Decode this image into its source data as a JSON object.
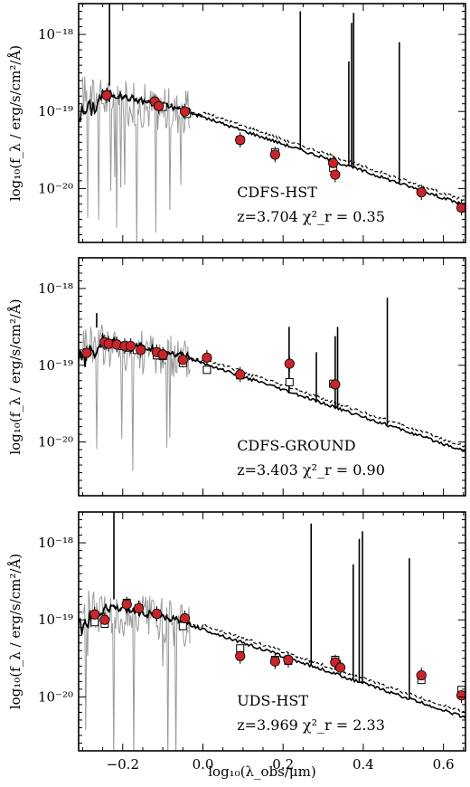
{
  "chart_data": [
    {
      "type": "line",
      "id": "top",
      "field_label": "CDFS-HST",
      "fit_label": "z=3.704 χ²_r = 0.35",
      "ylabel": "log₁₀(f_λ / erg/s/cm²/Å)",
      "xlim": [
        -0.31,
        0.655
      ],
      "ylim": [
        -20.7,
        -17.6
      ],
      "yticks": [
        {
          "v": -18,
          "label": "10⁻¹⁸"
        },
        {
          "v": -19,
          "label": "10⁻¹⁹"
        },
        {
          "v": -20,
          "label": "10⁻²⁰"
        }
      ],
      "photometry": [
        {
          "x": -0.24,
          "y": -18.79
        },
        {
          "x": -0.12,
          "y": -18.87
        },
        {
          "x": -0.11,
          "y": -18.93
        },
        {
          "x": -0.045,
          "y": -19.0
        },
        {
          "x": 0.093,
          "y": -19.37
        },
        {
          "x": 0.18,
          "y": -19.56
        },
        {
          "x": 0.325,
          "y": -19.67
        },
        {
          "x": 0.33,
          "y": -19.82
        },
        {
          "x": 0.545,
          "y": -20.05
        },
        {
          "x": 0.645,
          "y": -20.25
        }
      ],
      "model_photometry": [
        {
          "x": -0.24,
          "y": -18.78
        },
        {
          "x": -0.12,
          "y": -18.88
        },
        {
          "x": -0.1,
          "y": -18.94
        },
        {
          "x": -0.04,
          "y": -19.03
        },
        {
          "x": 0.093,
          "y": -19.37
        },
        {
          "x": 0.18,
          "y": -19.53
        },
        {
          "x": 0.325,
          "y": -19.73
        },
        {
          "x": 0.645,
          "y": -20.24
        }
      ],
      "emission_lines": [
        {
          "x": -0.233,
          "y": -17.55
        },
        {
          "x": 0.243,
          "y": -17.7
        },
        {
          "x": 0.364,
          "y": -18.35
        },
        {
          "x": 0.371,
          "y": -17.85
        },
        {
          "x": 0.376,
          "y": -17.72
        },
        {
          "x": 0.49,
          "y": -18.1
        }
      ]
    },
    {
      "type": "line",
      "id": "middle",
      "field_label": "CDFS-GROUND",
      "fit_label": "z=3.403 χ²_r = 0.90",
      "ylabel": "log₁₀(f_λ / erg/s/cm²/Å)",
      "xlim": [
        -0.31,
        0.655
      ],
      "ylim": [
        -20.7,
        -17.6
      ],
      "yticks": [
        {
          "v": -18,
          "label": "10⁻¹⁸"
        },
        {
          "v": -19,
          "label": "10⁻¹⁹"
        },
        {
          "v": -20,
          "label": "10⁻²⁰"
        }
      ],
      "photometry": [
        {
          "x": -0.29,
          "y": -18.84
        },
        {
          "x": -0.245,
          "y": -18.7
        },
        {
          "x": -0.235,
          "y": -18.72
        },
        {
          "x": -0.215,
          "y": -18.73
        },
        {
          "x": -0.195,
          "y": -18.75
        },
        {
          "x": -0.18,
          "y": -18.75
        },
        {
          "x": -0.155,
          "y": -18.8
        },
        {
          "x": -0.115,
          "y": -18.83
        },
        {
          "x": -0.1,
          "y": -18.86
        },
        {
          "x": -0.05,
          "y": -18.93
        },
        {
          "x": 0.01,
          "y": -18.9
        },
        {
          "x": 0.093,
          "y": -19.12
        },
        {
          "x": 0.216,
          "y": -18.98
        },
        {
          "x": 0.33,
          "y": -19.25
        }
      ],
      "model_photometry": [
        {
          "x": -0.24,
          "y": -18.73
        },
        {
          "x": -0.2,
          "y": -18.75
        },
        {
          "x": -0.185,
          "y": -18.77
        },
        {
          "x": -0.165,
          "y": -18.8
        },
        {
          "x": -0.115,
          "y": -18.87
        },
        {
          "x": -0.1,
          "y": -18.88
        },
        {
          "x": -0.05,
          "y": -18.97
        },
        {
          "x": 0.01,
          "y": -19.06
        },
        {
          "x": 0.093,
          "y": -19.13
        },
        {
          "x": 0.216,
          "y": -19.22
        },
        {
          "x": 0.325,
          "y": -19.24
        }
      ],
      "emission_lines": [
        {
          "x": -0.265,
          "y": -18.32
        },
        {
          "x": 0.215,
          "y": -18.5
        },
        {
          "x": 0.283,
          "y": -18.83
        },
        {
          "x": 0.33,
          "y": -18.62
        },
        {
          "x": 0.336,
          "y": -18.5
        },
        {
          "x": 0.46,
          "y": -18.12
        }
      ]
    },
    {
      "type": "line",
      "id": "bottom",
      "field_label": "UDS-HST",
      "fit_label": "z=3.969 χ²_r = 2.33",
      "ylabel": "log₁₀(f_λ / erg/s/cm²/Å)",
      "xlabel": "log₁₀(λ_obs/μm)",
      "xlim": [
        -0.31,
        0.655
      ],
      "ylim": [
        -20.7,
        -17.6
      ],
      "xticks": [
        {
          "v": -0.2,
          "label": "−0.2"
        },
        {
          "v": 0.0,
          "label": "0.0"
        },
        {
          "v": 0.2,
          "label": "0.2"
        },
        {
          "v": 0.4,
          "label": "0.4"
        },
        {
          "v": 0.6,
          "label": "0.6"
        }
      ],
      "yticks": [
        {
          "v": -18,
          "label": "10⁻¹⁸"
        },
        {
          "v": -19,
          "label": "10⁻¹⁹"
        },
        {
          "v": -20,
          "label": "10⁻²⁰"
        }
      ],
      "photometry": [
        {
          "x": -0.27,
          "y": -18.93
        },
        {
          "x": -0.245,
          "y": -19.0
        },
        {
          "x": -0.19,
          "y": -18.8
        },
        {
          "x": -0.16,
          "y": -18.85
        },
        {
          "x": -0.115,
          "y": -18.92
        },
        {
          "x": -0.045,
          "y": -18.98
        },
        {
          "x": 0.093,
          "y": -19.47
        },
        {
          "x": 0.18,
          "y": -19.54
        },
        {
          "x": 0.213,
          "y": -19.52
        },
        {
          "x": 0.33,
          "y": -19.55
        },
        {
          "x": 0.343,
          "y": -19.62
        },
        {
          "x": 0.545,
          "y": -19.72
        },
        {
          "x": 0.645,
          "y": -19.98
        }
      ],
      "model_photometry": [
        {
          "x": -0.27,
          "y": -19.03
        },
        {
          "x": -0.245,
          "y": -19.05
        },
        {
          "x": -0.19,
          "y": -18.78
        },
        {
          "x": -0.16,
          "y": -18.85
        },
        {
          "x": -0.115,
          "y": -18.92
        },
        {
          "x": -0.05,
          "y": -19.08
        },
        {
          "x": 0.093,
          "y": -19.37
        },
        {
          "x": 0.18,
          "y": -19.52
        },
        {
          "x": 0.213,
          "y": -19.53
        },
        {
          "x": 0.33,
          "y": -19.52
        },
        {
          "x": 0.545,
          "y": -19.78
        },
        {
          "x": 0.645,
          "y": -19.91
        }
      ],
      "emission_lines": [
        {
          "x": -0.222,
          "y": -17.6
        },
        {
          "x": 0.27,
          "y": -17.75
        },
        {
          "x": 0.375,
          "y": -18.28
        },
        {
          "x": 0.39,
          "y": -17.95
        },
        {
          "x": 0.398,
          "y": -17.85
        },
        {
          "x": 0.515,
          "y": -18.2
        }
      ]
    }
  ]
}
